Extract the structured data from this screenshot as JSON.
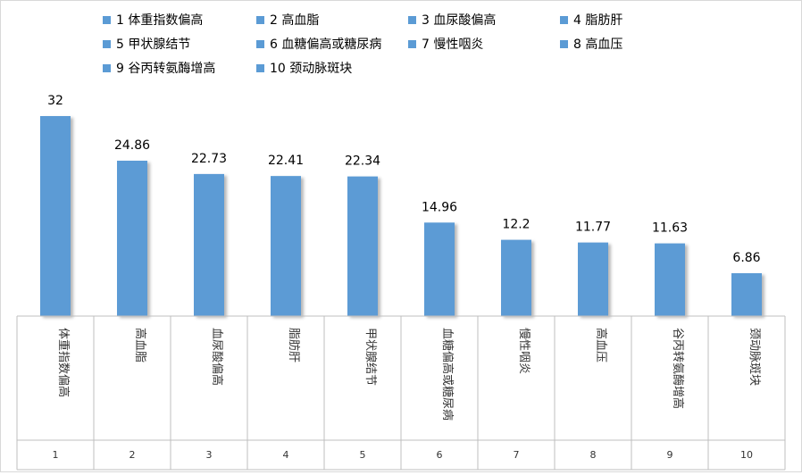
{
  "chart_data": {
    "type": "bar",
    "title": "",
    "xlabel": "",
    "ylabel": "",
    "ylim": [
      0,
      32
    ],
    "grid": false,
    "legend_position": "top",
    "bar_color": "#5B9BD5",
    "categories": [
      "1",
      "2",
      "3",
      "4",
      "5",
      "6",
      "7",
      "8",
      "9",
      "10"
    ],
    "category_labels": [
      "体重指数偏高",
      "高血脂",
      "血尿酸偏高",
      "脂肪肝",
      "甲状腺结节",
      "血糖偏高或糖尿病",
      "慢性咽炎",
      "高血压",
      "谷丙转氨酶增高",
      "颈动脉斑块"
    ],
    "values": [
      32,
      24.86,
      22.73,
      22.41,
      22.34,
      14.96,
      12.2,
      11.77,
      11.63,
      6.86
    ],
    "data_labels": [
      "32",
      "24.86",
      "22.73",
      "22.41",
      "22.34",
      "14.96",
      "12.2",
      "11.77",
      "11.63",
      "6.86"
    ],
    "legend": [
      "1 体重指数偏高",
      "2 高血脂",
      "3 血尿酸偏高",
      "4 脂肪肝",
      "5 甲状腺结节",
      "6 血糖偏高或糖尿病",
      "7 慢性咽炎",
      "8 高血压",
      "9 谷丙转氨酶增高",
      "10 颈动脉斑块"
    ]
  }
}
